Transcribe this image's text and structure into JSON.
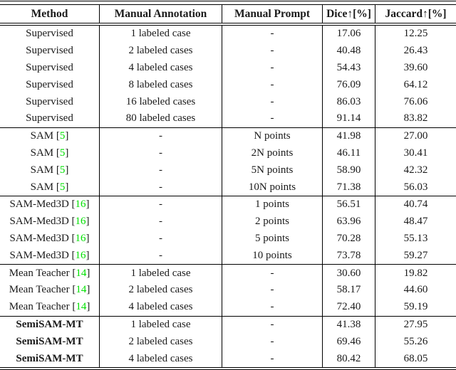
{
  "page": {
    "background_color": "#ffffff",
    "text_color": "#1a1a1a",
    "rule_color": "#000000",
    "citation_color": "#00e000"
  },
  "table": {
    "columns": [
      {
        "label": "Method"
      },
      {
        "label": "Manual Annotation"
      },
      {
        "label": "Manual Prompt"
      },
      {
        "label": "Dice↑[%]"
      },
      {
        "label": "Jaccard↑[%]"
      }
    ],
    "sections": [
      {
        "name": "supervised",
        "rows": [
          {
            "method": "Supervised",
            "cite": null,
            "bold": false,
            "annotation": "1 labeled case",
            "prompt": "-",
            "dice": "17.06",
            "jaccard": "12.25"
          },
          {
            "method": "Supervised",
            "cite": null,
            "bold": false,
            "annotation": "2 labeled cases",
            "prompt": "-",
            "dice": "40.48",
            "jaccard": "26.43"
          },
          {
            "method": "Supervised",
            "cite": null,
            "bold": false,
            "annotation": "4 labeled cases",
            "prompt": "-",
            "dice": "54.43",
            "jaccard": "39.60"
          },
          {
            "method": "Supervised",
            "cite": null,
            "bold": false,
            "annotation": "8 labeled cases",
            "prompt": "-",
            "dice": "76.09",
            "jaccard": "64.12"
          },
          {
            "method": "Supervised",
            "cite": null,
            "bold": false,
            "annotation": "16 labeled cases",
            "prompt": "-",
            "dice": "86.03",
            "jaccard": "76.06"
          },
          {
            "method": "Supervised",
            "cite": null,
            "bold": false,
            "annotation": "80 labeled cases",
            "prompt": "-",
            "dice": "91.14",
            "jaccard": "83.82"
          }
        ]
      },
      {
        "name": "sam",
        "rows": [
          {
            "method": "SAM",
            "cite": "5",
            "bold": false,
            "annotation": "-",
            "prompt": "N points",
            "dice": "41.98",
            "jaccard": "27.00"
          },
          {
            "method": "SAM",
            "cite": "5",
            "bold": false,
            "annotation": "-",
            "prompt": "2N points",
            "dice": "46.11",
            "jaccard": "30.41"
          },
          {
            "method": "SAM",
            "cite": "5",
            "bold": false,
            "annotation": "-",
            "prompt": "5N points",
            "dice": "58.90",
            "jaccard": "42.32"
          },
          {
            "method": "SAM",
            "cite": "5",
            "bold": false,
            "annotation": "-",
            "prompt": "10N points",
            "dice": "71.38",
            "jaccard": "56.03"
          }
        ]
      },
      {
        "name": "sam-med3d",
        "rows": [
          {
            "method": "SAM-Med3D",
            "cite": "16",
            "bold": false,
            "annotation": "-",
            "prompt": "1 points",
            "dice": "56.51",
            "jaccard": "40.74"
          },
          {
            "method": "SAM-Med3D",
            "cite": "16",
            "bold": false,
            "annotation": "-",
            "prompt": "2 points",
            "dice": "63.96",
            "jaccard": "48.47"
          },
          {
            "method": "SAM-Med3D",
            "cite": "16",
            "bold": false,
            "annotation": "-",
            "prompt": "5 points",
            "dice": "70.28",
            "jaccard": "55.13"
          },
          {
            "method": "SAM-Med3D",
            "cite": "16",
            "bold": false,
            "annotation": "-",
            "prompt": "10 points",
            "dice": "73.78",
            "jaccard": "59.27"
          }
        ]
      },
      {
        "name": "mean-teacher",
        "rows": [
          {
            "method": "Mean Teacher",
            "cite": "14",
            "bold": false,
            "annotation": "1 labeled case",
            "prompt": "-",
            "dice": "30.60",
            "jaccard": "19.82"
          },
          {
            "method": "Mean Teacher",
            "cite": "14",
            "bold": false,
            "annotation": "2 labeled cases",
            "prompt": "-",
            "dice": "58.17",
            "jaccard": "44.60"
          },
          {
            "method": "Mean Teacher",
            "cite": "14",
            "bold": false,
            "annotation": "4 labeled cases",
            "prompt": "-",
            "dice": "72.40",
            "jaccard": "59.19"
          }
        ]
      },
      {
        "name": "semisam-mt",
        "rows": [
          {
            "method": "SemiSAM-MT",
            "cite": null,
            "bold": true,
            "annotation": "1 labeled case",
            "prompt": "-",
            "dice": "41.38",
            "jaccard": "27.95"
          },
          {
            "method": "SemiSAM-MT",
            "cite": null,
            "bold": true,
            "annotation": "2 labeled cases",
            "prompt": "-",
            "dice": "69.46",
            "jaccard": "55.26"
          },
          {
            "method": "SemiSAM-MT",
            "cite": null,
            "bold": true,
            "annotation": "4 labeled cases",
            "prompt": "-",
            "dice": "80.42",
            "jaccard": "68.05"
          }
        ]
      }
    ]
  }
}
